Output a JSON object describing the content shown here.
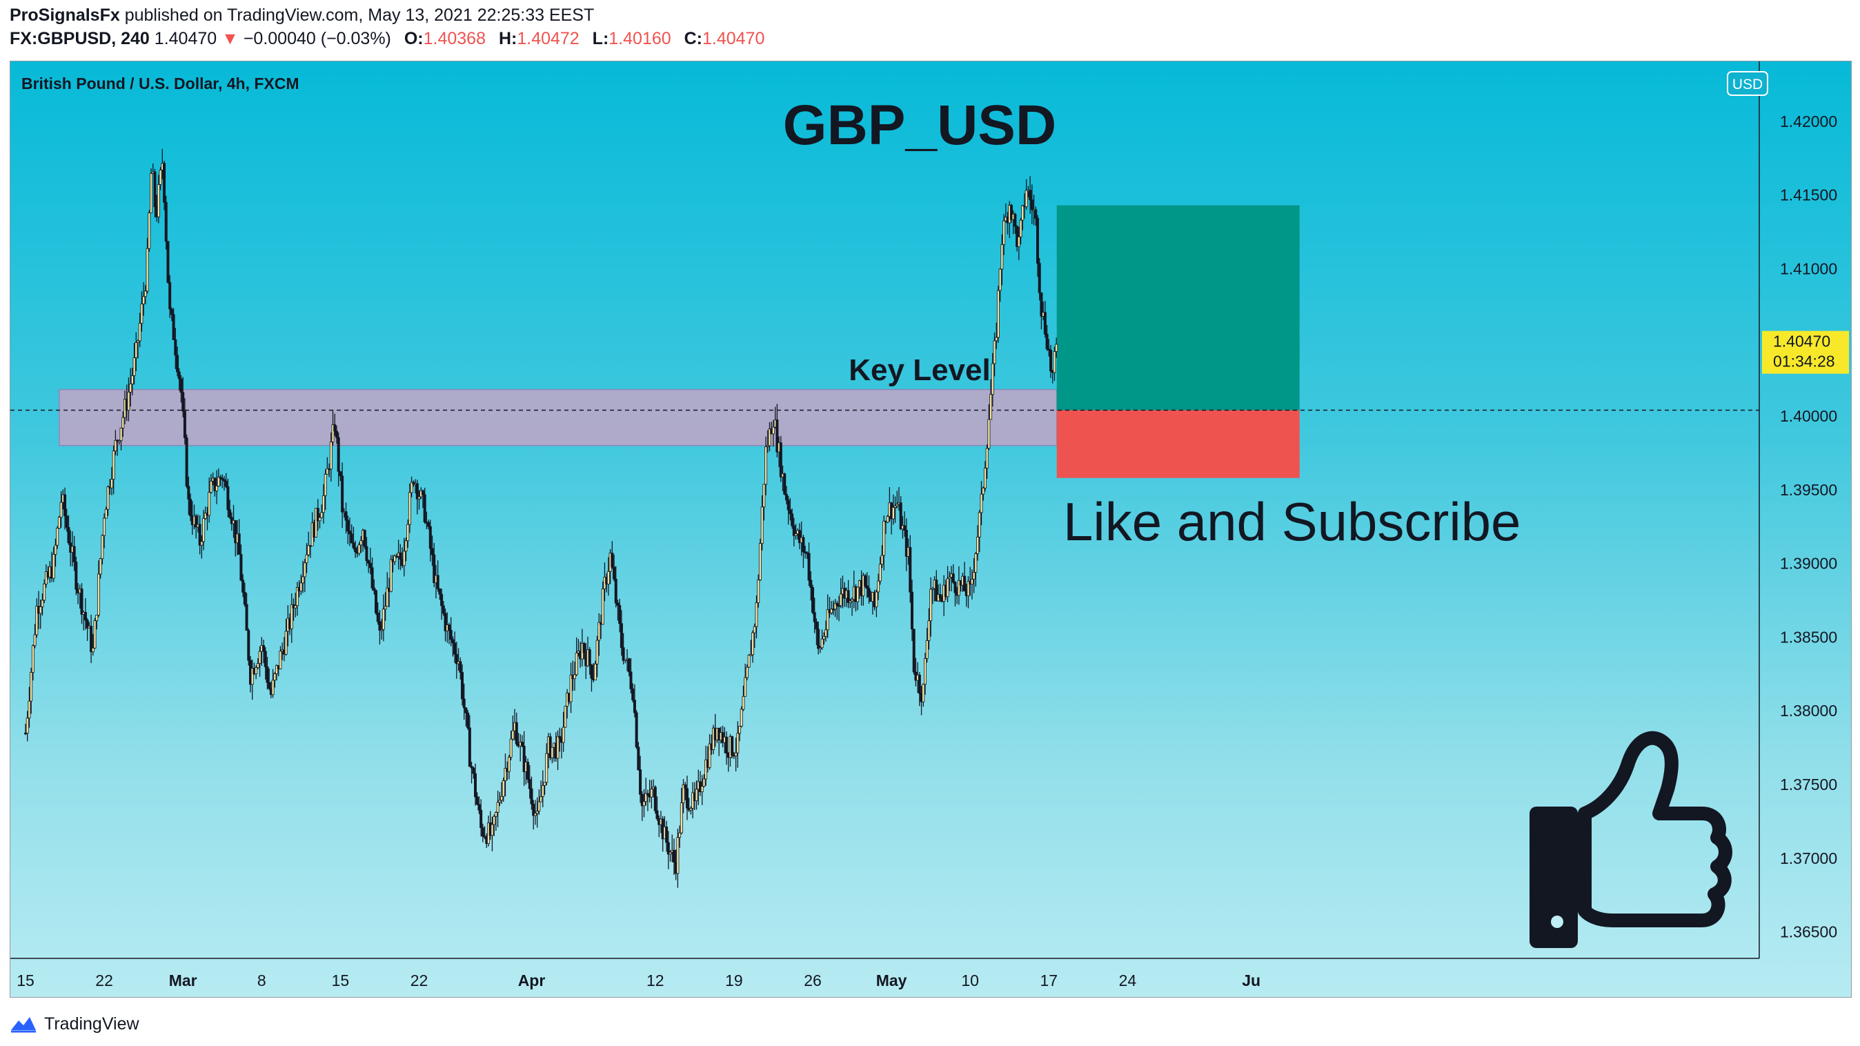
{
  "header": {
    "author": "ProSignalsFx",
    "published_text": "published on TradingView.com, May 13, 2021 22:25:33 EEST",
    "symbol": "FX:GBPUSD, 240",
    "last": "1.40470",
    "change_arrow": "▼",
    "change": "−0.00040 (−0.03%)",
    "o_label": "O:",
    "o": "1.40368",
    "h_label": "H:",
    "h": "1.40472",
    "l_label": "L:",
    "l": "1.40160",
    "c_label": "C:",
    "c": "1.40470"
  },
  "chart_data": {
    "type": "candlestick",
    "instrument": "British Pound / U.S. Dollar, 4h, FXCM",
    "title": "GBP_USD",
    "currency_badge": "USD",
    "price_label": "1.40470",
    "countdown": "01:34:28",
    "key_level": {
      "label": "Key Level",
      "from": 1.398,
      "to": 1.4018
    },
    "dashed_line_price": 1.4004,
    "position": {
      "entry": 1.4004,
      "target": 1.4143,
      "stop": 1.3958
    },
    "y_ticks": [
      "1.42000",
      "1.41500",
      "1.41000",
      "1.40500",
      "1.40000",
      "1.39500",
      "1.39000",
      "1.38500",
      "1.38000",
      "1.37500",
      "1.37000",
      "1.36500"
    ],
    "y_range": [
      1.3635,
      1.4225
    ],
    "x_ticks": [
      "15",
      "22",
      "Mar",
      "8",
      "15",
      "22",
      "Apr",
      "12",
      "19",
      "26",
      "May",
      "10",
      "17",
      "24",
      "Ju"
    ],
    "x_range_days": [
      0,
      107
    ],
    "x_tick_days": [
      0,
      7,
      14,
      21,
      28,
      35,
      45,
      56,
      63,
      70,
      77,
      84,
      91,
      98,
      109
    ],
    "keypoints": [
      [
        0,
        1.3785
      ],
      [
        1,
        1.387
      ],
      [
        2.5,
        1.39
      ],
      [
        3.2,
        1.3945
      ],
      [
        4.5,
        1.389
      ],
      [
        6,
        1.384
      ],
      [
        7,
        1.3935
      ],
      [
        8,
        1.398
      ],
      [
        9,
        1.401
      ],
      [
        9.8,
        1.404
      ],
      [
        10.8,
        1.41
      ],
      [
        11.2,
        1.417
      ],
      [
        11.6,
        1.4135
      ],
      [
        12.2,
        1.4175
      ],
      [
        12.8,
        1.407
      ],
      [
        13.2,
        1.4055
      ],
      [
        13.8,
        1.402
      ],
      [
        14.5,
        1.394
      ],
      [
        15.5,
        1.3915
      ],
      [
        16.5,
        1.395
      ],
      [
        17.5,
        1.396
      ],
      [
        18.3,
        1.3935
      ],
      [
        19,
        1.3905
      ],
      [
        20,
        1.3825
      ],
      [
        21,
        1.3845
      ],
      [
        21.8,
        1.381
      ],
      [
        22.6,
        1.3835
      ],
      [
        23.5,
        1.386
      ],
      [
        25,
        1.391
      ],
      [
        26.5,
        1.3945
      ],
      [
        27.5,
        1.3995
      ],
      [
        28.2,
        1.3935
      ],
      [
        29.2,
        1.3905
      ],
      [
        30,
        1.3925
      ],
      [
        31.5,
        1.385
      ],
      [
        32.5,
        1.3895
      ],
      [
        33.5,
        1.3905
      ],
      [
        34.5,
        1.396
      ],
      [
        35.5,
        1.3935
      ],
      [
        36.5,
        1.3885
      ],
      [
        37.5,
        1.3855
      ],
      [
        38.5,
        1.3835
      ],
      [
        39.5,
        1.377
      ],
      [
        40.5,
        1.372
      ],
      [
        41.5,
        1.3715
      ],
      [
        42.5,
        1.3755
      ],
      [
        43.5,
        1.379
      ],
      [
        44.5,
        1.376
      ],
      [
        45.5,
        1.3725
      ],
      [
        46.5,
        1.3775
      ],
      [
        47.5,
        1.3775
      ],
      [
        48.5,
        1.382
      ],
      [
        49.5,
        1.3845
      ],
      [
        50.5,
        1.3825
      ],
      [
        51.5,
        1.3885
      ],
      [
        52,
        1.3905
      ],
      [
        53,
        1.3845
      ],
      [
        54,
        1.3815
      ],
      [
        54.8,
        1.3735
      ],
      [
        55.8,
        1.3745
      ],
      [
        56.8,
        1.3715
      ],
      [
        57.8,
        1.3695
      ],
      [
        58.5,
        1.3745
      ],
      [
        59.5,
        1.3735
      ],
      [
        60.5,
        1.3765
      ],
      [
        61.5,
        1.379
      ],
      [
        62.5,
        1.3775
      ],
      [
        63.3,
        1.3775
      ],
      [
        64,
        1.3815
      ],
      [
        65,
        1.387
      ],
      [
        65.8,
        1.3975
      ],
      [
        66.5,
        1.4
      ],
      [
        67.5,
        1.395
      ],
      [
        68.5,
        1.392
      ],
      [
        69.5,
        1.3905
      ],
      [
        70.5,
        1.384
      ],
      [
        71.5,
        1.3865
      ],
      [
        72.5,
        1.388
      ],
      [
        73.5,
        1.388
      ],
      [
        74.5,
        1.3885
      ],
      [
        75.5,
        1.387
      ],
      [
        76.5,
        1.3935
      ],
      [
        77.5,
        1.394
      ],
      [
        78.5,
        1.3905
      ],
      [
        79,
        1.383
      ],
      [
        79.8,
        1.381
      ],
      [
        80.5,
        1.3885
      ],
      [
        81.5,
        1.3875
      ],
      [
        82,
        1.389
      ],
      [
        83,
        1.3885
      ],
      [
        84,
        1.388
      ],
      [
        85,
        1.394
      ],
      [
        85.5,
        1.3985
      ],
      [
        86.3,
        1.4055
      ],
      [
        86.8,
        1.412
      ],
      [
        87.5,
        1.4145
      ],
      [
        88.3,
        1.4115
      ],
      [
        89,
        1.4155
      ],
      [
        89.8,
        1.4135
      ],
      [
        90.3,
        1.4075
      ],
      [
        90.8,
        1.4055
      ],
      [
        91.3,
        1.4025
      ],
      [
        91.7,
        1.4047
      ]
    ]
  },
  "overlay": {
    "cta": "Like and Subscribe",
    "cta_icon": "thumbs-up-icon"
  },
  "footer": {
    "brand": "TradingView",
    "logo_icon": "tradingview-logo-icon"
  }
}
